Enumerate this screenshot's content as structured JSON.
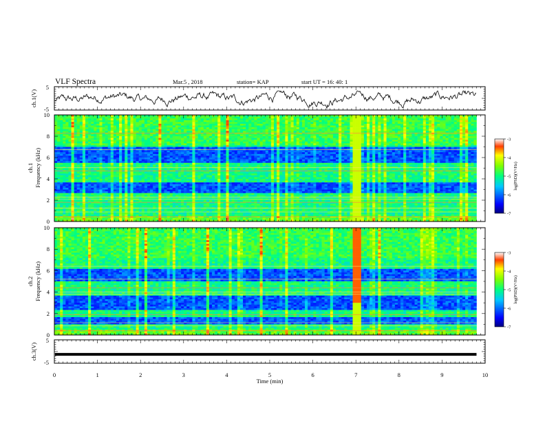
{
  "header": {
    "title": "VLF Spectra",
    "date": "Mar.5 , 2018",
    "station": "station= KAP",
    "start": "start UT = 16: 40: 1"
  },
  "chart_data": [
    {
      "type": "line",
      "panel": "ch1-waveform",
      "ylabel": "ch.1(V)",
      "ylim": [
        -5,
        5
      ],
      "yticks": [
        "5",
        "-5"
      ],
      "xlim": [
        0,
        10
      ],
      "notes": "noisy waveform mostly between -4 and 3 V, spans 0 to 9.8 min"
    },
    {
      "type": "heatmap",
      "panel": "ch1-spectrogram",
      "ylabel": "ch.1",
      "ylabel2": "Frequency (kHz)",
      "ylim": [
        0,
        10
      ],
      "yticks": [
        "0",
        "2",
        "4",
        "6",
        "8",
        "10"
      ],
      "xlim": [
        0,
        9.8
      ],
      "colorbar": {
        "label": "log(PSD)(V²/Hz)",
        "ticks": [
          "-3",
          "-4",
          "-5",
          "-6",
          "-7"
        ],
        "range": [
          -7,
          -3
        ]
      },
      "low_power_bands_khz": [
        [
          5.5,
          7.0
        ],
        [
          2.6,
          3.6
        ]
      ],
      "bright_streak_min": 7.02
    },
    {
      "type": "heatmap",
      "panel": "ch2-spectrogram",
      "ylabel": "ch.2",
      "ylabel2": "Frequency (kHz)",
      "ylim": [
        0,
        10
      ],
      "yticks": [
        "0",
        "2",
        "4",
        "6",
        "8",
        "10"
      ],
      "xlim": [
        0,
        9.8
      ],
      "colorbar": {
        "label": "log(PSD)(V²/Hz)",
        "ticks": [
          "-3",
          "-4",
          "-5",
          "-6",
          "-7"
        ],
        "range": [
          -7,
          -3
        ]
      },
      "low_power_bands_khz": [
        [
          5.0,
          6.2
        ],
        [
          2.4,
          3.6
        ],
        [
          1.0,
          1.6
        ]
      ],
      "bright_streak_min": 7.02
    },
    {
      "type": "line",
      "panel": "ch3-waveform",
      "ylabel": "ch.3(V)",
      "ylim": [
        -5,
        5
      ],
      "yticks": [
        "5",
        "-5"
      ],
      "xlabel": "Time (min)",
      "xlim": [
        0,
        10
      ],
      "xticks": [
        "0",
        "1",
        "2",
        "3",
        "4",
        "5",
        "6",
        "7",
        "8",
        "9",
        "10"
      ],
      "x": [
        0,
        9.8
      ],
      "y": [
        -1.2,
        -1.2
      ]
    }
  ]
}
